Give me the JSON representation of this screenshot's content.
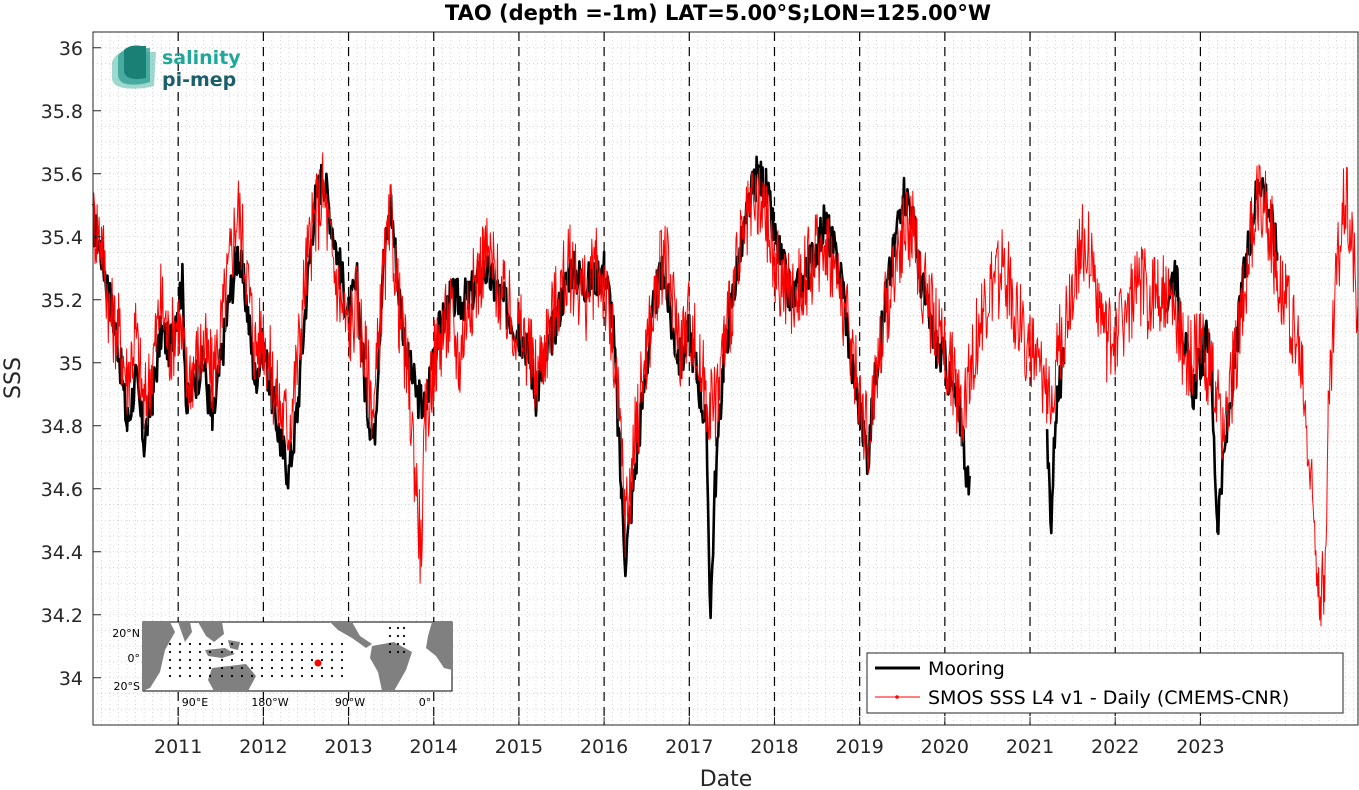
{
  "chart_data": {
    "type": "line",
    "title": "TAO (depth =-1m) LAT=5.00°S;LON=125.00°W",
    "xlabel": "Date",
    "ylabel": "SSS",
    "xlim": [
      2010.0,
      2024.85
    ],
    "ylim": [
      33.85,
      36.05
    ],
    "x_ticks": [
      "2011",
      "2012",
      "2013",
      "2014",
      "2015",
      "2016",
      "2017",
      "2018",
      "2019",
      "2020",
      "2021",
      "2022",
      "2023"
    ],
    "y_ticks": [
      "34",
      "34.2",
      "34.4",
      "34.6",
      "34.8",
      "35",
      "35.2",
      "35.4",
      "35.6",
      "35.8",
      "36"
    ],
    "grid": "dotted",
    "year_dividers": "dashed",
    "legend_position": "bottom-right",
    "series": [
      {
        "name": "Mooring",
        "color": "#000000",
        "style": "thick-line",
        "points": [
          [
            2010.0,
            35.45
          ],
          [
            2010.1,
            35.35
          ],
          [
            2010.2,
            35.2
          ],
          [
            2010.3,
            35.05
          ],
          [
            2010.4,
            34.8
          ],
          [
            2010.5,
            34.95
          ],
          [
            2010.6,
            34.75
          ],
          [
            2010.7,
            34.9
          ],
          [
            2010.8,
            35.1
          ],
          [
            2010.9,
            35.05
          ],
          [
            2011.0,
            35.2
          ],
          [
            2011.05,
            35.25
          ],
          [
            2011.1,
            34.85
          ],
          [
            2011.2,
            34.95
          ],
          [
            2011.3,
            35.0
          ],
          [
            2011.4,
            34.8
          ],
          [
            2011.5,
            35.0
          ],
          [
            2011.6,
            35.2
          ],
          [
            2011.7,
            35.35
          ],
          [
            2011.8,
            35.2
          ],
          [
            2011.9,
            34.95
          ],
          [
            2012.0,
            35.05
          ],
          [
            2012.1,
            34.9
          ],
          [
            2012.2,
            34.75
          ],
          [
            2012.3,
            34.65
          ],
          [
            2012.4,
            34.85
          ],
          [
            2012.5,
            35.2
          ],
          [
            2012.6,
            35.5
          ],
          [
            2012.7,
            35.6
          ],
          [
            2012.8,
            35.45
          ],
          [
            2012.9,
            35.3
          ],
          [
            2013.0,
            35.15
          ],
          [
            2013.1,
            35.25
          ],
          [
            2013.2,
            34.9
          ],
          [
            2013.3,
            34.75
          ],
          [
            2013.4,
            35.3
          ],
          [
            2013.5,
            35.5
          ],
          [
            2013.6,
            35.2
          ],
          [
            2013.7,
            35.0
          ],
          [
            2013.8,
            34.9
          ],
          [
            2013.9,
            34.85
          ],
          [
            2014.0,
            35.05
          ],
          [
            2014.2,
            35.2
          ],
          [
            2014.4,
            35.2
          ],
          [
            2014.6,
            35.3
          ],
          [
            2014.8,
            35.2
          ],
          [
            2015.0,
            35.1
          ],
          [
            2015.1,
            35.05
          ],
          [
            2015.2,
            34.9
          ],
          [
            2015.3,
            35.0
          ],
          [
            2015.4,
            35.1
          ],
          [
            2015.6,
            35.3
          ],
          [
            2015.8,
            35.25
          ],
          [
            2016.0,
            35.3
          ],
          [
            2016.1,
            35.15
          ],
          [
            2016.2,
            34.6
          ],
          [
            2016.25,
            34.38
          ],
          [
            2016.3,
            34.5
          ],
          [
            2016.4,
            34.75
          ],
          [
            2016.5,
            35.0
          ],
          [
            2016.6,
            35.2
          ],
          [
            2016.7,
            35.3
          ],
          [
            2016.8,
            35.1
          ],
          [
            2016.9,
            35.0
          ],
          [
            2017.0,
            35.1
          ],
          [
            2017.1,
            34.95
          ],
          [
            2017.2,
            34.8
          ],
          [
            2017.25,
            34.2
          ],
          [
            2017.3,
            34.6
          ],
          [
            2017.4,
            35.0
          ],
          [
            2017.5,
            35.2
          ],
          [
            2017.6,
            35.35
          ],
          [
            2017.7,
            35.5
          ],
          [
            2017.8,
            35.6
          ],
          [
            2017.9,
            35.55
          ],
          [
            2018.0,
            35.4
          ],
          [
            2018.1,
            35.3
          ],
          [
            2018.2,
            35.2
          ],
          [
            2018.4,
            35.3
          ],
          [
            2018.6,
            35.45
          ],
          [
            2018.8,
            35.25
          ],
          [
            2018.9,
            35.0
          ],
          [
            2019.0,
            34.85
          ],
          [
            2019.1,
            34.7
          ],
          [
            2019.2,
            35.0
          ],
          [
            2019.3,
            35.2
          ],
          [
            2019.4,
            35.35
          ],
          [
            2019.5,
            35.55
          ],
          [
            2019.6,
            35.5
          ],
          [
            2019.7,
            35.3
          ],
          [
            2019.8,
            35.15
          ],
          [
            2019.9,
            35.05
          ],
          [
            2020.0,
            35.0
          ],
          [
            2020.1,
            34.9
          ],
          [
            2020.2,
            34.8
          ],
          [
            2020.3,
            34.55
          ],
          [
            2021.2,
            34.75
          ],
          [
            2021.25,
            34.5
          ],
          [
            2021.3,
            34.85
          ],
          [
            2021.4,
            35.0
          ],
          [
            2022.6,
            35.2
          ],
          [
            2022.7,
            35.3
          ],
          [
            2022.8,
            35.1
          ],
          [
            2022.9,
            34.9
          ],
          [
            2023.0,
            35.0
          ],
          [
            2023.1,
            35.1
          ],
          [
            2023.2,
            34.5
          ],
          [
            2023.3,
            34.75
          ],
          [
            2023.4,
            35.0
          ],
          [
            2023.5,
            35.25
          ],
          [
            2023.6,
            35.45
          ],
          [
            2023.7,
            35.6
          ],
          [
            2023.8,
            35.5
          ],
          [
            2023.9,
            35.35
          ]
        ]
      },
      {
        "name": "SMOS SSS L4 v1 - Daily (CMEMS-CNR)",
        "color": "#ff0000",
        "style": "thin-line-dots",
        "points": [
          [
            2010.0,
            35.45
          ],
          [
            2010.1,
            35.4
          ],
          [
            2010.2,
            35.15
          ],
          [
            2010.3,
            35.1
          ],
          [
            2010.4,
            34.95
          ],
          [
            2010.5,
            35.1
          ],
          [
            2010.6,
            34.85
          ],
          [
            2010.7,
            35.0
          ],
          [
            2010.8,
            35.2
          ],
          [
            2010.9,
            35.05
          ],
          [
            2011.0,
            35.15
          ],
          [
            2011.1,
            34.95
          ],
          [
            2011.2,
            35.0
          ],
          [
            2011.3,
            35.05
          ],
          [
            2011.4,
            34.95
          ],
          [
            2011.5,
            35.1
          ],
          [
            2011.6,
            35.3
          ],
          [
            2011.7,
            35.5
          ],
          [
            2011.8,
            35.3
          ],
          [
            2011.9,
            35.05
          ],
          [
            2012.0,
            35.1
          ],
          [
            2012.1,
            34.95
          ],
          [
            2012.2,
            34.85
          ],
          [
            2012.3,
            34.8
          ],
          [
            2012.4,
            35.0
          ],
          [
            2012.5,
            35.3
          ],
          [
            2012.6,
            35.45
          ],
          [
            2012.7,
            35.55
          ],
          [
            2012.8,
            35.35
          ],
          [
            2012.9,
            35.2
          ],
          [
            2013.0,
            35.1
          ],
          [
            2013.1,
            35.2
          ],
          [
            2013.2,
            35.0
          ],
          [
            2013.3,
            34.85
          ],
          [
            2013.4,
            35.25
          ],
          [
            2013.5,
            35.45
          ],
          [
            2013.6,
            35.15
          ],
          [
            2013.7,
            34.95
          ],
          [
            2013.8,
            34.6
          ],
          [
            2013.85,
            34.4
          ],
          [
            2013.9,
            34.8
          ],
          [
            2014.0,
            35.0
          ],
          [
            2014.1,
            35.1
          ],
          [
            2014.2,
            35.15
          ],
          [
            2014.3,
            35.0
          ],
          [
            2014.4,
            35.2
          ],
          [
            2014.5,
            35.25
          ],
          [
            2014.6,
            35.35
          ],
          [
            2014.7,
            35.3
          ],
          [
            2014.8,
            35.2
          ],
          [
            2014.9,
            35.15
          ],
          [
            2015.0,
            35.1
          ],
          [
            2015.1,
            35.05
          ],
          [
            2015.2,
            34.95
          ],
          [
            2015.3,
            35.05
          ],
          [
            2015.4,
            35.15
          ],
          [
            2015.5,
            35.25
          ],
          [
            2015.6,
            35.3
          ],
          [
            2015.7,
            35.25
          ],
          [
            2015.8,
            35.2
          ],
          [
            2015.9,
            35.3
          ],
          [
            2016.0,
            35.25
          ],
          [
            2016.1,
            35.05
          ],
          [
            2016.2,
            34.75
          ],
          [
            2016.25,
            34.5
          ],
          [
            2016.3,
            34.6
          ],
          [
            2016.4,
            34.85
          ],
          [
            2016.5,
            35.05
          ],
          [
            2016.6,
            35.2
          ],
          [
            2016.7,
            35.35
          ],
          [
            2016.8,
            35.2
          ],
          [
            2016.9,
            35.05
          ],
          [
            2017.0,
            35.15
          ],
          [
            2017.1,
            35.0
          ],
          [
            2017.2,
            34.9
          ],
          [
            2017.3,
            34.85
          ],
          [
            2017.4,
            35.05
          ],
          [
            2017.5,
            35.2
          ],
          [
            2017.6,
            35.35
          ],
          [
            2017.7,
            35.45
          ],
          [
            2017.8,
            35.5
          ],
          [
            2017.9,
            35.45
          ],
          [
            2018.0,
            35.3
          ],
          [
            2018.1,
            35.25
          ],
          [
            2018.2,
            35.2
          ],
          [
            2018.3,
            35.25
          ],
          [
            2018.4,
            35.3
          ],
          [
            2018.5,
            35.35
          ],
          [
            2018.6,
            35.4
          ],
          [
            2018.7,
            35.3
          ],
          [
            2018.8,
            35.2
          ],
          [
            2018.9,
            35.05
          ],
          [
            2019.0,
            34.9
          ],
          [
            2019.1,
            34.75
          ],
          [
            2019.2,
            35.0
          ],
          [
            2019.3,
            35.15
          ],
          [
            2019.4,
            35.3
          ],
          [
            2019.5,
            35.4
          ],
          [
            2019.6,
            35.45
          ],
          [
            2019.7,
            35.3
          ],
          [
            2019.8,
            35.2
          ],
          [
            2019.9,
            35.1
          ],
          [
            2020.0,
            35.05
          ],
          [
            2020.1,
            34.95
          ],
          [
            2020.2,
            34.85
          ],
          [
            2020.3,
            35.0
          ],
          [
            2020.4,
            35.1
          ],
          [
            2020.5,
            35.2
          ],
          [
            2020.6,
            35.25
          ],
          [
            2020.7,
            35.3
          ],
          [
            2020.8,
            35.2
          ],
          [
            2020.9,
            35.1
          ],
          [
            2021.0,
            35.05
          ],
          [
            2021.1,
            34.95
          ],
          [
            2021.2,
            34.9
          ],
          [
            2021.3,
            35.0
          ],
          [
            2021.4,
            35.1
          ],
          [
            2021.5,
            35.25
          ],
          [
            2021.6,
            35.4
          ],
          [
            2021.7,
            35.35
          ],
          [
            2021.8,
            35.2
          ],
          [
            2021.9,
            35.05
          ],
          [
            2022.0,
            35.1
          ],
          [
            2022.1,
            35.15
          ],
          [
            2022.2,
            35.2
          ],
          [
            2022.3,
            35.25
          ],
          [
            2022.4,
            35.2
          ],
          [
            2022.5,
            35.25
          ],
          [
            2022.6,
            35.2
          ],
          [
            2022.7,
            35.15
          ],
          [
            2022.8,
            35.05
          ],
          [
            2022.9,
            35.0
          ],
          [
            2023.0,
            35.05
          ],
          [
            2023.1,
            35.0
          ],
          [
            2023.2,
            34.85
          ],
          [
            2023.3,
            34.8
          ],
          [
            2023.4,
            35.0
          ],
          [
            2023.5,
            35.2
          ],
          [
            2023.6,
            35.4
          ],
          [
            2023.7,
            35.55
          ],
          [
            2023.8,
            35.45
          ],
          [
            2023.9,
            35.3
          ],
          [
            2024.0,
            35.2
          ],
          [
            2024.1,
            35.1
          ],
          [
            2024.2,
            34.95
          ],
          [
            2024.3,
            34.6
          ],
          [
            2024.4,
            34.3
          ],
          [
            2024.45,
            34.25
          ],
          [
            2024.5,
            34.8
          ],
          [
            2024.6,
            35.3
          ],
          [
            2024.7,
            35.55
          ],
          [
            2024.8,
            35.35
          ],
          [
            2024.85,
            35.1
          ]
        ]
      }
    ]
  },
  "logo": {
    "line1": "salinity",
    "line2": "pi-mep",
    "color1": "#1fa89a",
    "color2": "#1a5f6b"
  },
  "inset_map": {
    "lat_labels": [
      "20°N",
      "0°",
      "20°S"
    ],
    "lon_labels": [
      "90°E",
      "180°W",
      "90°W",
      "0°"
    ],
    "land_color": "#808080",
    "ocean_color": "#ffffff",
    "marker_color": "#ff0000",
    "station_lat": -5.0,
    "station_lon": -125.0
  },
  "legend": {
    "items": [
      {
        "label": "Mooring",
        "color": "#000000"
      },
      {
        "label": "SMOS SSS L4 v1 - Daily (CMEMS-CNR)",
        "color": "#ff0000"
      }
    ]
  }
}
